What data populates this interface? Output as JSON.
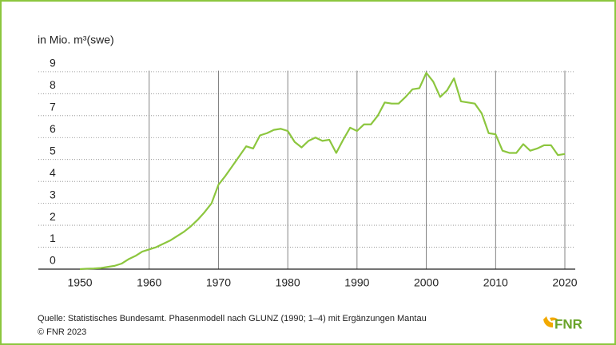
{
  "chart_data": {
    "type": "line",
    "y_axis_label": "in Mio. m³(swe)",
    "x": [
      1950,
      1951,
      1952,
      1953,
      1954,
      1955,
      1956,
      1957,
      1958,
      1959,
      1960,
      1961,
      1962,
      1963,
      1964,
      1965,
      1966,
      1967,
      1968,
      1969,
      1970,
      1971,
      1972,
      1973,
      1974,
      1975,
      1976,
      1977,
      1978,
      1979,
      1980,
      1981,
      1982,
      1983,
      1984,
      1985,
      1986,
      1987,
      1988,
      1989,
      1990,
      1991,
      1992,
      1993,
      1994,
      1995,
      1996,
      1997,
      1998,
      1999,
      2000,
      2001,
      2002,
      2003,
      2004,
      2005,
      2006,
      2007,
      2008,
      2009,
      2010,
      2011,
      2012,
      2013,
      2014,
      2015,
      2016,
      2017,
      2018,
      2019,
      2020
    ],
    "series": [
      {
        "color": "#8cc63e",
        "values": [
          0,
          0.02,
          0.03,
          0.05,
          0.1,
          0.15,
          0.25,
          0.45,
          0.6,
          0.8,
          0.9,
          1.0,
          1.15,
          1.3,
          1.5,
          1.7,
          1.95,
          2.25,
          2.6,
          3.0,
          3.85,
          4.25,
          4.7,
          5.15,
          5.6,
          5.5,
          6.1,
          6.2,
          6.35,
          6.4,
          6.3,
          5.8,
          5.55,
          5.85,
          6.0,
          5.85,
          5.9,
          5.3,
          5.9,
          6.45,
          6.3,
          6.6,
          6.6,
          7.0,
          7.6,
          7.55,
          7.55,
          7.85,
          8.2,
          8.25,
          8.95,
          8.55,
          7.85,
          8.15,
          8.7,
          7.65,
          7.6,
          7.55,
          7.1,
          6.2,
          6.15,
          5.4,
          5.3,
          5.3,
          5.7,
          5.4,
          5.5,
          5.65,
          5.65,
          5.2,
          5.25
        ]
      }
    ],
    "xlim": [
      1944,
      2021.5
    ],
    "xticks": [
      1950,
      1960,
      1970,
      1980,
      1990,
      2000,
      2010,
      2020
    ],
    "ylim": [
      0,
      9.05
    ],
    "yticks": [
      0,
      1,
      2,
      3,
      4,
      5,
      6,
      7,
      8,
      9
    ],
    "grid": true,
    "source": "Quelle: Statistisches Bundesamt. Phasenmodell nach GLUNZ (1990; 1–4) mit Ergänzungen Mantau",
    "copyright": "© FNR 2023",
    "logo": "FNR"
  }
}
